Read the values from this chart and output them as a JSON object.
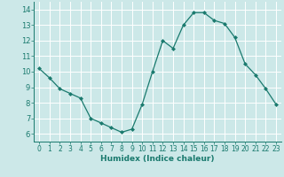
{
  "x": [
    0,
    1,
    2,
    3,
    4,
    5,
    6,
    7,
    8,
    9,
    10,
    11,
    12,
    13,
    14,
    15,
    16,
    17,
    18,
    19,
    20,
    21,
    22,
    23
  ],
  "y": [
    10.2,
    9.6,
    8.9,
    8.6,
    8.3,
    7.0,
    6.7,
    6.4,
    6.1,
    6.3,
    7.9,
    10.0,
    12.0,
    11.5,
    13.0,
    13.8,
    13.8,
    13.3,
    13.1,
    12.2,
    10.5,
    9.8,
    8.9,
    7.9
  ],
  "line_color": "#1a7a6e",
  "marker_color": "#1a7a6e",
  "bg_color": "#cce8e8",
  "grid_color": "#ffffff",
  "xlabel": "Humidex (Indice chaleur)",
  "xlabel_color": "#1a7a6e",
  "tick_color": "#1a7a6e",
  "ylim": [
    5.5,
    14.5
  ],
  "xlim": [
    -0.5,
    23.5
  ],
  "yticks": [
    6,
    7,
    8,
    9,
    10,
    11,
    12,
    13,
    14
  ],
  "xticks": [
    0,
    1,
    2,
    3,
    4,
    5,
    6,
    7,
    8,
    9,
    10,
    11,
    12,
    13,
    14,
    15,
    16,
    17,
    18,
    19,
    20,
    21,
    22,
    23
  ]
}
